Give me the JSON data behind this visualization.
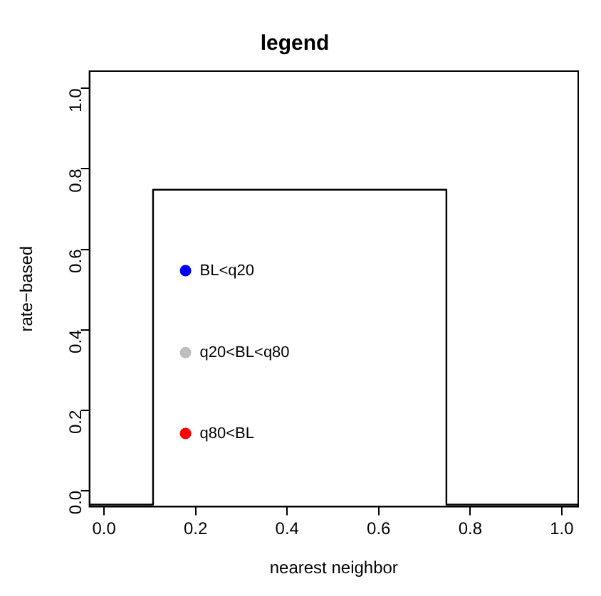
{
  "chart_data": {
    "type": "scatter",
    "title": "legend",
    "xlabel": "nearest neighbor",
    "ylabel": "rate−based",
    "xlim": [
      -0.032,
      1.036
    ],
    "ylim": [
      -0.04,
      1.043
    ],
    "xticks": [
      {
        "value": 0,
        "label": "0.0"
      },
      0.2,
      0.4,
      0.6,
      0.8,
      {
        "value": 1,
        "label": "1.0"
      }
    ],
    "yticks": [
      {
        "value": 0,
        "label": "0.0"
      },
      0.2,
      0.4,
      0.6,
      0.8,
      {
        "value": 1,
        "label": "1.0"
      }
    ],
    "grid": false,
    "legend": false,
    "marker": "circle",
    "series": [
      {
        "type": "line",
        "color": "#000000",
        "marker": "none",
        "x": [
          -0.032,
          0.107,
          0.107,
          0.748,
          0.748,
          1.036
        ],
        "values": [
          -0.035,
          -0.035,
          0.748,
          0.748,
          -0.035,
          -0.035
        ]
      },
      {
        "name": "BL<q20",
        "color": "#0000ff",
        "x": [
          0.178
        ],
        "values": [
          0.547
        ]
      },
      {
        "name": "q20<BL<q80",
        "color": "#bebebe",
        "x": [
          0.178
        ],
        "values": [
          0.343
        ]
      },
      {
        "name": "q80<BL",
        "color": "#ff0000",
        "x": [
          0.178
        ],
        "values": [
          0.142
        ]
      }
    ]
  }
}
